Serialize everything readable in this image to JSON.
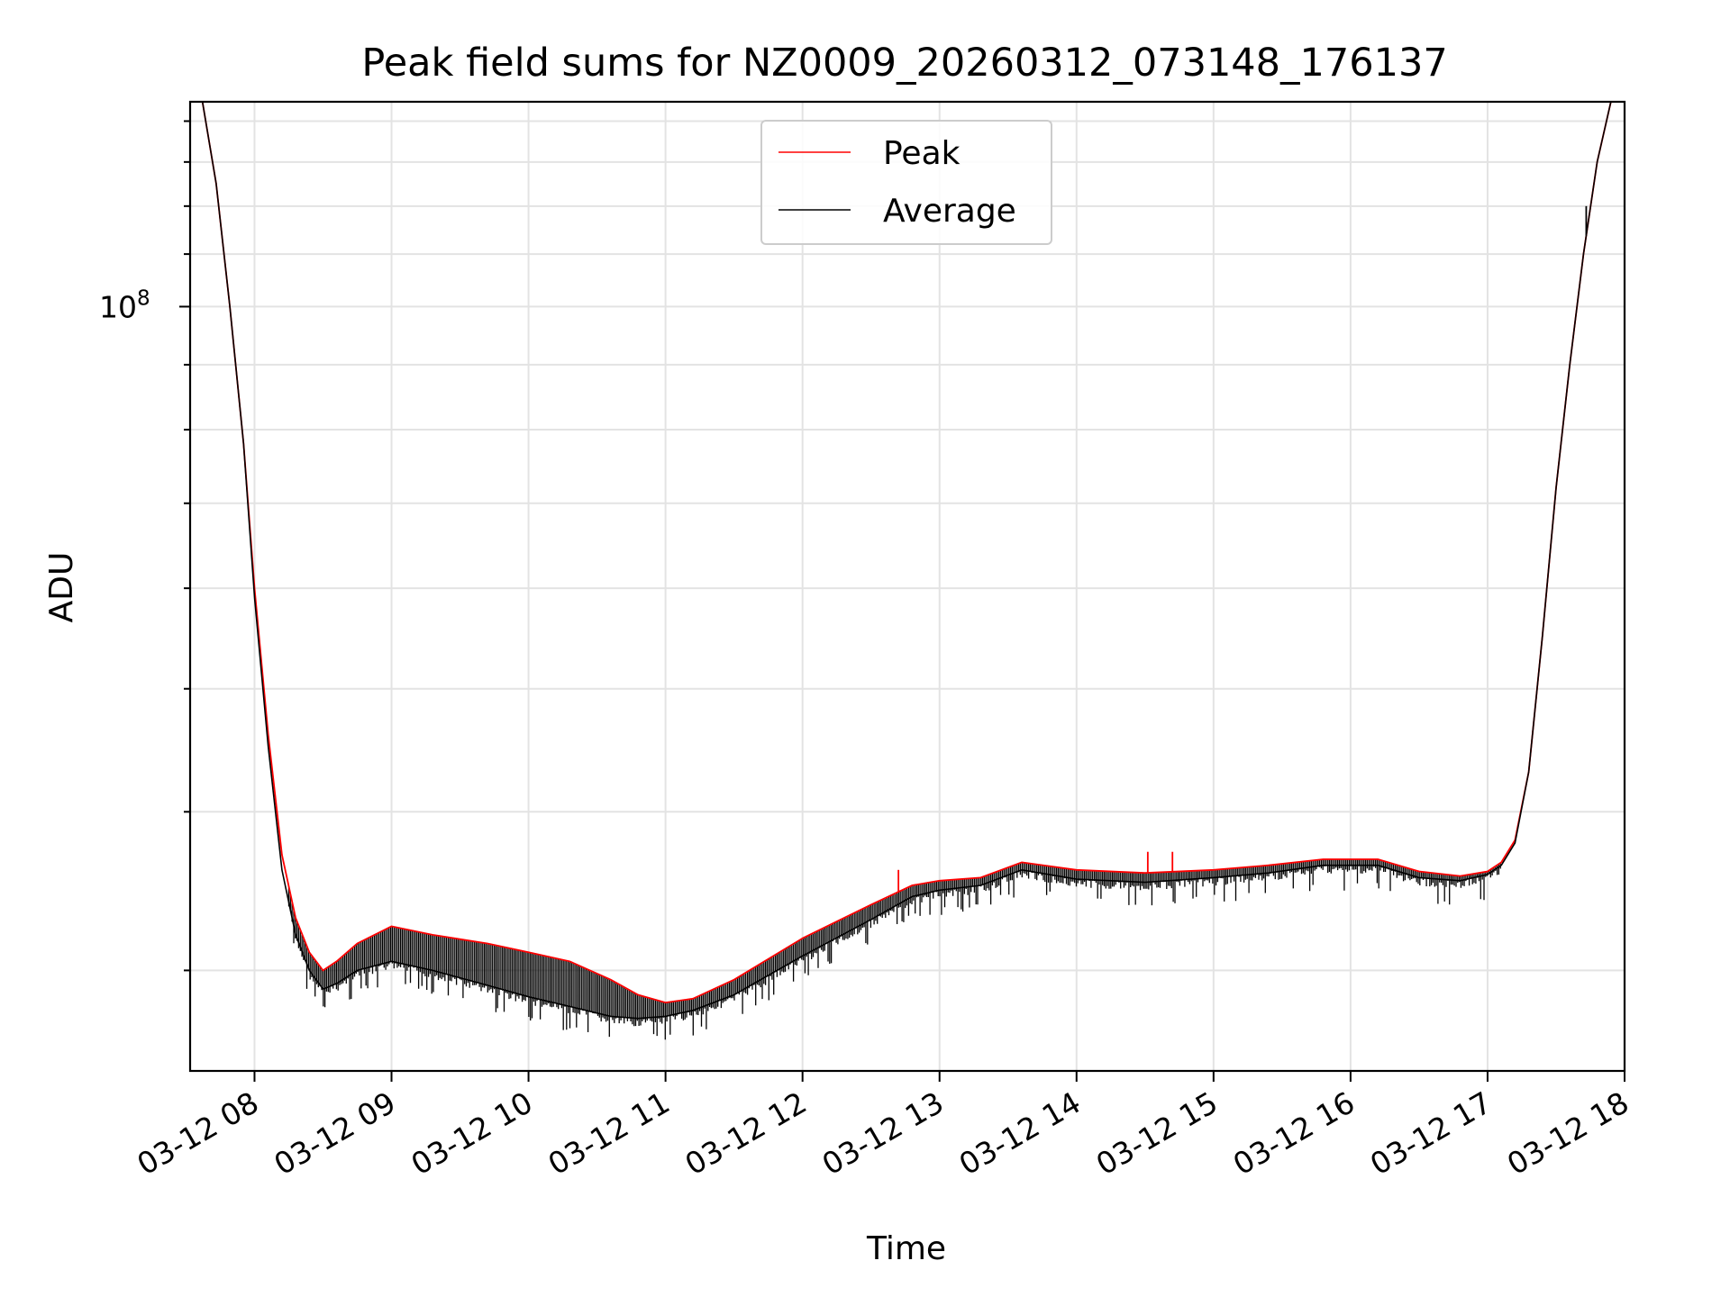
{
  "chart_data": {
    "type": "line",
    "title": "Peak field sums for NZ0009_20260312_073148_176137",
    "xlabel": "Time",
    "ylabel": "ADU",
    "yscale": "log",
    "ylim": [
      25000000,
      145000000
    ],
    "xlim_hours": [
      7.53,
      18.0
    ],
    "x_tick_labels": [
      "03-12 08",
      "03-12 09",
      "03-12 10",
      "03-12 11",
      "03-12 12",
      "03-12 13",
      "03-12 14",
      "03-12 15",
      "03-12 16",
      "03-12 17",
      "03-12 18"
    ],
    "x_tick_hours": [
      8,
      9,
      10,
      11,
      12,
      13,
      14,
      15,
      16,
      17,
      18
    ],
    "y_tick_label": "10",
    "y_tick_exponent": "8",
    "y_tick_value": 100000000,
    "grid": true,
    "legend_position": "upper center",
    "series": [
      {
        "name": "Peak",
        "color": "#ff0000",
        "x_hours": [
          7.55,
          7.62,
          7.72,
          7.82,
          7.92,
          8.0,
          8.1,
          8.2,
          8.3,
          8.4,
          8.5,
          8.6,
          8.75,
          9.0,
          9.3,
          9.7,
          10.0,
          10.3,
          10.6,
          10.8,
          11.0,
          11.2,
          11.5,
          12.0,
          12.5,
          12.8,
          13.0,
          13.3,
          13.6,
          14.0,
          14.5,
          15.0,
          15.4,
          15.8,
          16.2,
          16.5,
          16.8,
          17.0,
          17.1,
          17.2,
          17.3,
          17.4,
          17.5,
          17.6,
          17.7,
          17.8,
          17.9,
          18.0
        ],
        "y": [
          145000000,
          145000000,
          125000000,
          100000000,
          78000000,
          60000000,
          46000000,
          37000000,
          33000000,
          31000000,
          30000000,
          30500000,
          31500000,
          32500000,
          32000000,
          31500000,
          31000000,
          30500000,
          29500000,
          28700000,
          28300000,
          28500000,
          29500000,
          31800000,
          33800000,
          35000000,
          35300000,
          35500000,
          36500000,
          36000000,
          35800000,
          36000000,
          36300000,
          36700000,
          36700000,
          35900000,
          35600000,
          35900000,
          36500000,
          38000000,
          43000000,
          55000000,
          72000000,
          90000000,
          110000000,
          130000000,
          145000000,
          145000000
        ]
      },
      {
        "name": "Average",
        "color": "#000000",
        "x_hours": [
          7.55,
          7.62,
          7.72,
          7.82,
          7.92,
          8.0,
          8.1,
          8.2,
          8.3,
          8.4,
          8.5,
          8.6,
          8.75,
          9.0,
          9.3,
          9.7,
          10.0,
          10.3,
          10.6,
          10.8,
          11.0,
          11.2,
          11.5,
          12.0,
          12.5,
          12.8,
          13.0,
          13.3,
          13.6,
          14.0,
          14.5,
          15.0,
          15.4,
          15.8,
          16.2,
          16.5,
          16.8,
          17.0,
          17.1,
          17.2,
          17.3,
          17.4,
          17.5,
          17.6,
          17.7,
          17.8,
          17.9,
          18.0
        ],
        "y": [
          145000000,
          145000000,
          125000000,
          100000000,
          78000000,
          59000000,
          45000000,
          36000000,
          32000000,
          30000000,
          29000000,
          29300000,
          30000000,
          30500000,
          30000000,
          29200000,
          28600000,
          28100000,
          27600000,
          27500000,
          27600000,
          27900000,
          28700000,
          30800000,
          32900000,
          34300000,
          34700000,
          35000000,
          36000000,
          35400000,
          35200000,
          35500000,
          35800000,
          36300000,
          36300000,
          35500000,
          35300000,
          35700000,
          36300000,
          37800000,
          43000000,
          55000000,
          72000000,
          90000000,
          110000000,
          130000000,
          145000000,
          145000000
        ]
      }
    ],
    "annotations": [
      {
        "series": "Peak",
        "kind": "spike",
        "x_hour": 14.52,
        "y": 37200000
      },
      {
        "series": "Peak",
        "kind": "spike",
        "x_hour": 14.7,
        "y": 37200000
      },
      {
        "series": "Peak",
        "kind": "spike",
        "x_hour": 12.7,
        "y": 36000000
      },
      {
        "series": "Average",
        "kind": "spike",
        "x_hour": 17.72,
        "y": 120000000
      }
    ]
  }
}
